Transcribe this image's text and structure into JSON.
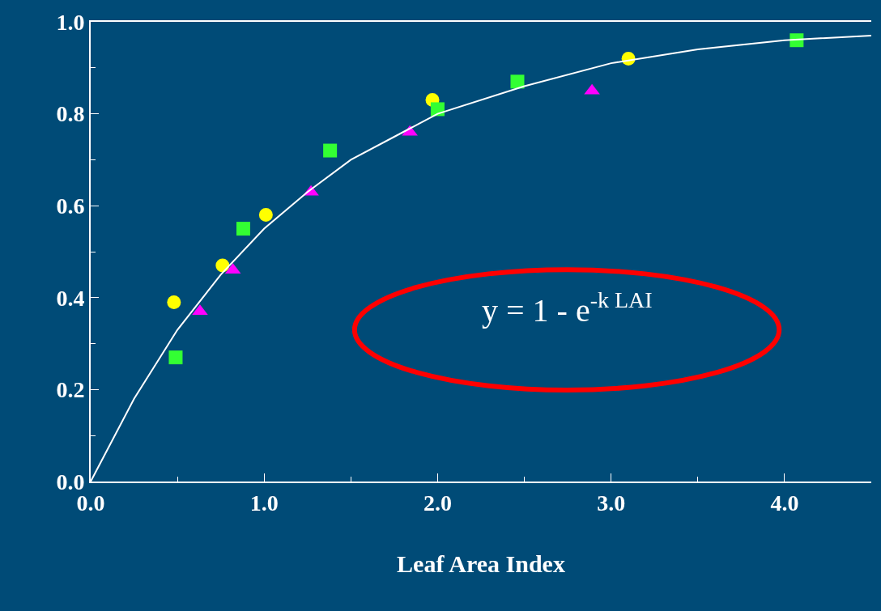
{
  "chart_data": {
    "type": "scatter",
    "xlabel": "Leaf Area Index",
    "xlim": [
      0,
      4.5
    ],
    "ylim": [
      0,
      1.0
    ],
    "xticks": [
      {
        "value": 0,
        "label": "0.0"
      },
      {
        "value": 1,
        "label": "1.0"
      },
      {
        "value": 2,
        "label": "2.0"
      },
      {
        "value": 3,
        "label": "3.0"
      },
      {
        "value": 4,
        "label": "4.0"
      }
    ],
    "yticks": [
      {
        "value": 0,
        "label": "0.0"
      },
      {
        "value": 0.2,
        "label": "0.2"
      },
      {
        "value": 0.4,
        "label": "0.4"
      },
      {
        "value": 0.6,
        "label": "0.6"
      },
      {
        "value": 0.8,
        "label": "0.8"
      },
      {
        "value": 1,
        "label": "1.0"
      }
    ],
    "series": [
      {
        "marker": "circle",
        "color": "#ffff00",
        "x": [
          0.48,
          0.76,
          1.01,
          1.97,
          3.1
        ],
        "values": [
          0.39,
          0.47,
          0.58,
          0.83,
          0.92
        ]
      },
      {
        "marker": "square",
        "color": "#33ff33",
        "x": [
          0.49,
          0.88,
          1.38,
          2.0,
          2.46,
          4.07
        ],
        "values": [
          0.27,
          0.55,
          0.72,
          0.81,
          0.87,
          0.96
        ]
      },
      {
        "marker": "triangle",
        "color": "#ff00ff",
        "x": [
          0.63,
          0.82,
          1.27,
          1.84,
          2.89
        ],
        "values": [
          0.37,
          0.46,
          0.63,
          0.76,
          0.85
        ]
      },
      {
        "type": "line",
        "marker": "none",
        "color": "#ffffff",
        "x": [
          0,
          0.25,
          0.5,
          0.75,
          1,
          1.25,
          1.5,
          1.75,
          2,
          2.5,
          3,
          3.5,
          4,
          4.5
        ],
        "values": [
          0,
          0.18,
          0.33,
          0.45,
          0.55,
          0.63,
          0.7,
          0.75,
          0.8,
          0.86,
          0.91,
          0.94,
          0.96,
          0.97
        ]
      }
    ],
    "annotations": [
      "y = 1 - e$^{-k LAI}$"
    ]
  }
}
